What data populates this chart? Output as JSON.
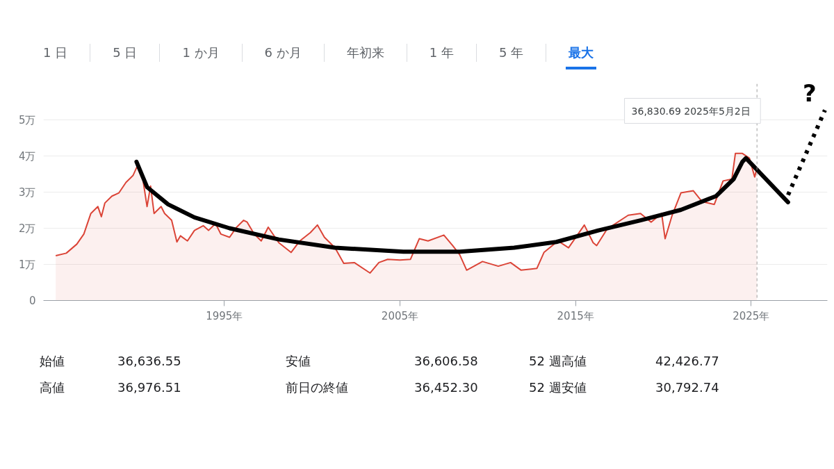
{
  "chart_data": {
    "type": "area",
    "xlim": [
      1984.7,
      2029.34
    ],
    "ylim": [
      0,
      6
    ],
    "xticks": [
      {
        "value": 1995,
        "label": "1995年"
      },
      {
        "value": 2005,
        "label": "2005年"
      },
      {
        "value": 2015,
        "label": "2015年"
      },
      {
        "value": 2025,
        "label": "2025年"
      }
    ],
    "yticks": [
      0,
      {
        "value": 1,
        "label": "1万"
      },
      {
        "value": 2,
        "label": "2万"
      },
      {
        "value": 3,
        "label": "3万"
      },
      {
        "value": 4,
        "label": "4万"
      },
      {
        "value": 5,
        "label": "5万"
      }
    ],
    "grid": "y",
    "series": [
      {
        "color": "#db4437",
        "x": [
          1985.4,
          1986.0,
          1986.6,
          1987.0,
          1987.4,
          1987.8,
          1988.0,
          1988.2,
          1988.6,
          1989.0,
          1989.4,
          1989.8,
          1990.1,
          1990.3,
          1990.6,
          1990.8,
          1991.0,
          1991.4,
          1991.6,
          1992.0,
          1992.3,
          1992.5,
          1992.9,
          1993.3,
          1993.8,
          1994.1,
          1994.5,
          1994.8,
          1995.3,
          1995.7,
          1996.1,
          1996.3,
          1996.7,
          1997.1,
          1997.5,
          1998.1,
          1998.8,
          1999.3,
          1999.9,
          2000.3,
          2000.7,
          2001.3,
          2001.8,
          2002.4,
          2003.3,
          2003.8,
          2004.3,
          2005.0,
          2005.6,
          2006.1,
          2006.6,
          2007.5,
          2008.0,
          2008.4,
          2008.8,
          2009.7,
          2010.6,
          2011.3,
          2011.9,
          2012.8,
          2013.2,
          2014.0,
          2014.6,
          2015.5,
          2016.0,
          2016.2,
          2016.8,
          2018.0,
          2018.7,
          2019.3,
          2019.9,
          2020.1,
          2020.5,
          2021.0,
          2021.7,
          2022.2,
          2022.9,
          2023.4,
          2023.9,
          2024.1,
          2024.5,
          2024.9,
          2025.2,
          2025.33
        ],
        "values": [
          1.24,
          1.31,
          1.56,
          1.84,
          2.41,
          2.6,
          2.32,
          2.7,
          2.89,
          2.98,
          3.27,
          3.46,
          3.78,
          3.55,
          2.6,
          3.17,
          2.41,
          2.6,
          2.41,
          2.22,
          1.62,
          1.79,
          1.65,
          1.94,
          2.07,
          1.94,
          2.13,
          1.84,
          1.75,
          2.03,
          2.22,
          2.17,
          1.84,
          1.65,
          2.03,
          1.6,
          1.33,
          1.65,
          1.88,
          2.09,
          1.75,
          1.46,
          1.03,
          1.05,
          0.76,
          1.05,
          1.14,
          1.12,
          1.14,
          1.71,
          1.65,
          1.81,
          1.52,
          1.27,
          0.84,
          1.08,
          0.95,
          1.05,
          0.84,
          0.89,
          1.33,
          1.65,
          1.46,
          2.09,
          1.6,
          1.52,
          1.98,
          2.36,
          2.41,
          2.17,
          2.41,
          1.71,
          2.36,
          2.98,
          3.04,
          2.74,
          2.66,
          3.31,
          3.36,
          4.07,
          4.07,
          3.94,
          3.42,
          3.68
        ]
      },
      {
        "type": "line",
        "color": "#000000",
        "line_style": "solid",
        "x": [
          1990.0,
          1990.6,
          1991.8,
          1993.3,
          1995.3,
          1998.1,
          2001.3,
          2005.2,
          2008.4,
          2011.5,
          2013.9,
          2016.3,
          2018.7,
          2021.0,
          2023.0,
          2024.0,
          2024.5,
          2024.7,
          2027.1
        ],
        "values": [
          3.84,
          3.14,
          2.66,
          2.3,
          2.0,
          1.69,
          1.46,
          1.35,
          1.35,
          1.46,
          1.62,
          1.94,
          2.22,
          2.51,
          2.89,
          3.36,
          3.84,
          3.94,
          2.72
        ]
      },
      {
        "type": "line",
        "color": "#000000",
        "line_style": "dotted",
        "x": [
          2027.1,
          2029.2
        ],
        "values": [
          2.92,
          5.27
        ]
      }
    ],
    "ref_lines": [
      {
        "axis": "x",
        "value": 2025.33,
        "color": "#9e9e9e",
        "line_style": "dotted"
      }
    ],
    "annotations": [
      "1 日",
      "5 日",
      "1 か月",
      "6 か月",
      "年初来",
      "1 年",
      "5 年",
      "最大",
      "36,830.69  2025年5月2日",
      "?",
      "始値",
      "36,636.55",
      "安値",
      "36,606.58",
      "52 週高値",
      "42,426.77",
      "高値",
      "36,976.51",
      "前日の終値",
      "36,452.30",
      "52 週安値",
      "30,792.74"
    ]
  }
}
